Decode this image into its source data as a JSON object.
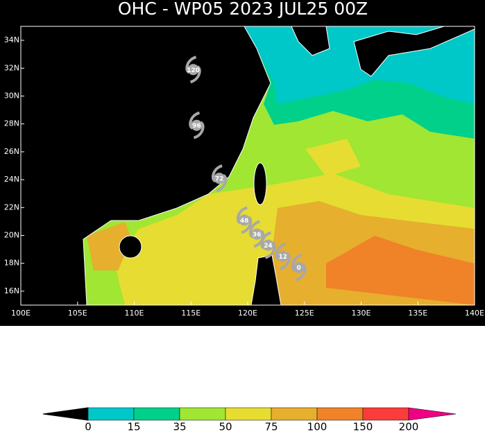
{
  "map": {
    "title": "OHC - WP05 2023 JUL25 00Z",
    "xlim": [
      100,
      140
    ],
    "ylim": [
      15,
      35
    ],
    "xticks": [
      {
        "value": 100,
        "label": "100E"
      },
      {
        "value": 105,
        "label": "105E"
      },
      {
        "value": 110,
        "label": "110E"
      },
      {
        "value": 115,
        "label": "115E"
      },
      {
        "value": 120,
        "label": "120E"
      },
      {
        "value": 125,
        "label": "125E"
      },
      {
        "value": 130,
        "label": "130E"
      },
      {
        "value": 135,
        "label": "135E"
      },
      {
        "value": 140,
        "label": "140E"
      }
    ],
    "yticks": [
      {
        "value": 16,
        "label": "16N"
      },
      {
        "value": 18,
        "label": "18N"
      },
      {
        "value": 20,
        "label": "20N"
      },
      {
        "value": 22,
        "label": "22N"
      },
      {
        "value": 24,
        "label": "24N"
      },
      {
        "value": 26,
        "label": "26N"
      },
      {
        "value": 28,
        "label": "28N"
      },
      {
        "value": 30,
        "label": "30N"
      },
      {
        "value": 32,
        "label": "32N"
      },
      {
        "value": 34,
        "label": "34N"
      }
    ],
    "track": [
      {
        "tau": "120",
        "lat": 31.9,
        "lon": 115.2
      },
      {
        "tau": "96",
        "lat": 27.9,
        "lon": 115.5
      },
      {
        "tau": "72",
        "lat": 24.1,
        "lon": 117.5
      },
      {
        "tau": "48",
        "lat": 21.1,
        "lon": 119.7
      },
      {
        "tau": "36",
        "lat": 20.1,
        "lon": 120.8
      },
      {
        "tau": "24",
        "lat": 19.3,
        "lon": 121.8
      },
      {
        "tau": "12",
        "lat": 18.5,
        "lon": 123.1
      },
      {
        "tau": "0",
        "lat": 17.7,
        "lon": 124.5
      }
    ],
    "colorbar": {
      "ticks": [
        0,
        15,
        35,
        50,
        75,
        100,
        150,
        200
      ],
      "colors": [
        "#00c8c8",
        "#00d08a",
        "#a0e632",
        "#e6dc32",
        "#e6af2d",
        "#f08228",
        "#fa3c3c"
      ],
      "over_color": "#f00082"
    }
  }
}
